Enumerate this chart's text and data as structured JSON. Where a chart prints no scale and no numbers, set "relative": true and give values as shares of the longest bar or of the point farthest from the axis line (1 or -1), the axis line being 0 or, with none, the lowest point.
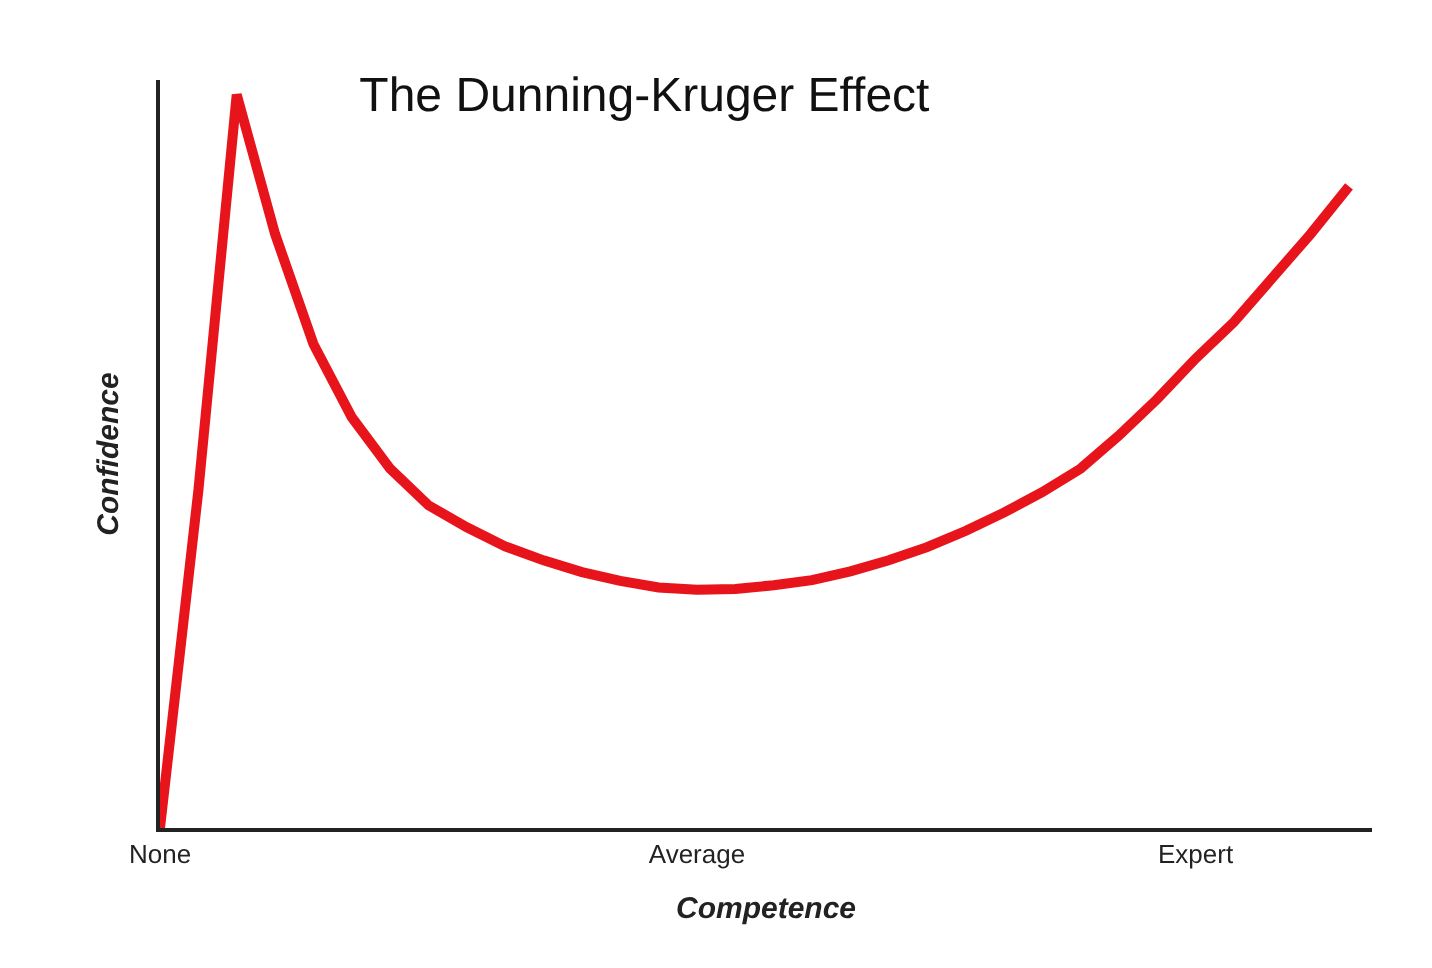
{
  "chart_data": {
    "type": "line",
    "title": "The Dunning-Kruger Effect",
    "xlabel": "Competence",
    "ylabel": "Confidence",
    "relative": true,
    "categories": [
      "None",
      null,
      null,
      null,
      null,
      null,
      null,
      null,
      null,
      null,
      null,
      null,
      null,
      null,
      "Average",
      null,
      null,
      null,
      null,
      null,
      null,
      null,
      null,
      null,
      null,
      null,
      null,
      "Expert",
      null,
      null,
      null,
      null
    ],
    "series": [
      {
        "color": "#e8141b",
        "values": [
          0,
          0.46,
          1.0,
          0.81,
          0.66,
          0.56,
          0.49,
          0.44,
          0.41,
          0.384,
          0.365,
          0.349,
          0.337,
          0.328,
          0.325,
          0.326,
          0.331,
          0.338,
          0.35,
          0.365,
          0.383,
          0.405,
          0.43,
          0.458,
          0.49,
          0.535,
          0.585,
          0.64,
          0.69,
          0.75,
          0.81,
          0.875
        ]
      }
    ],
    "marker": "none",
    "line_style": "solid"
  }
}
